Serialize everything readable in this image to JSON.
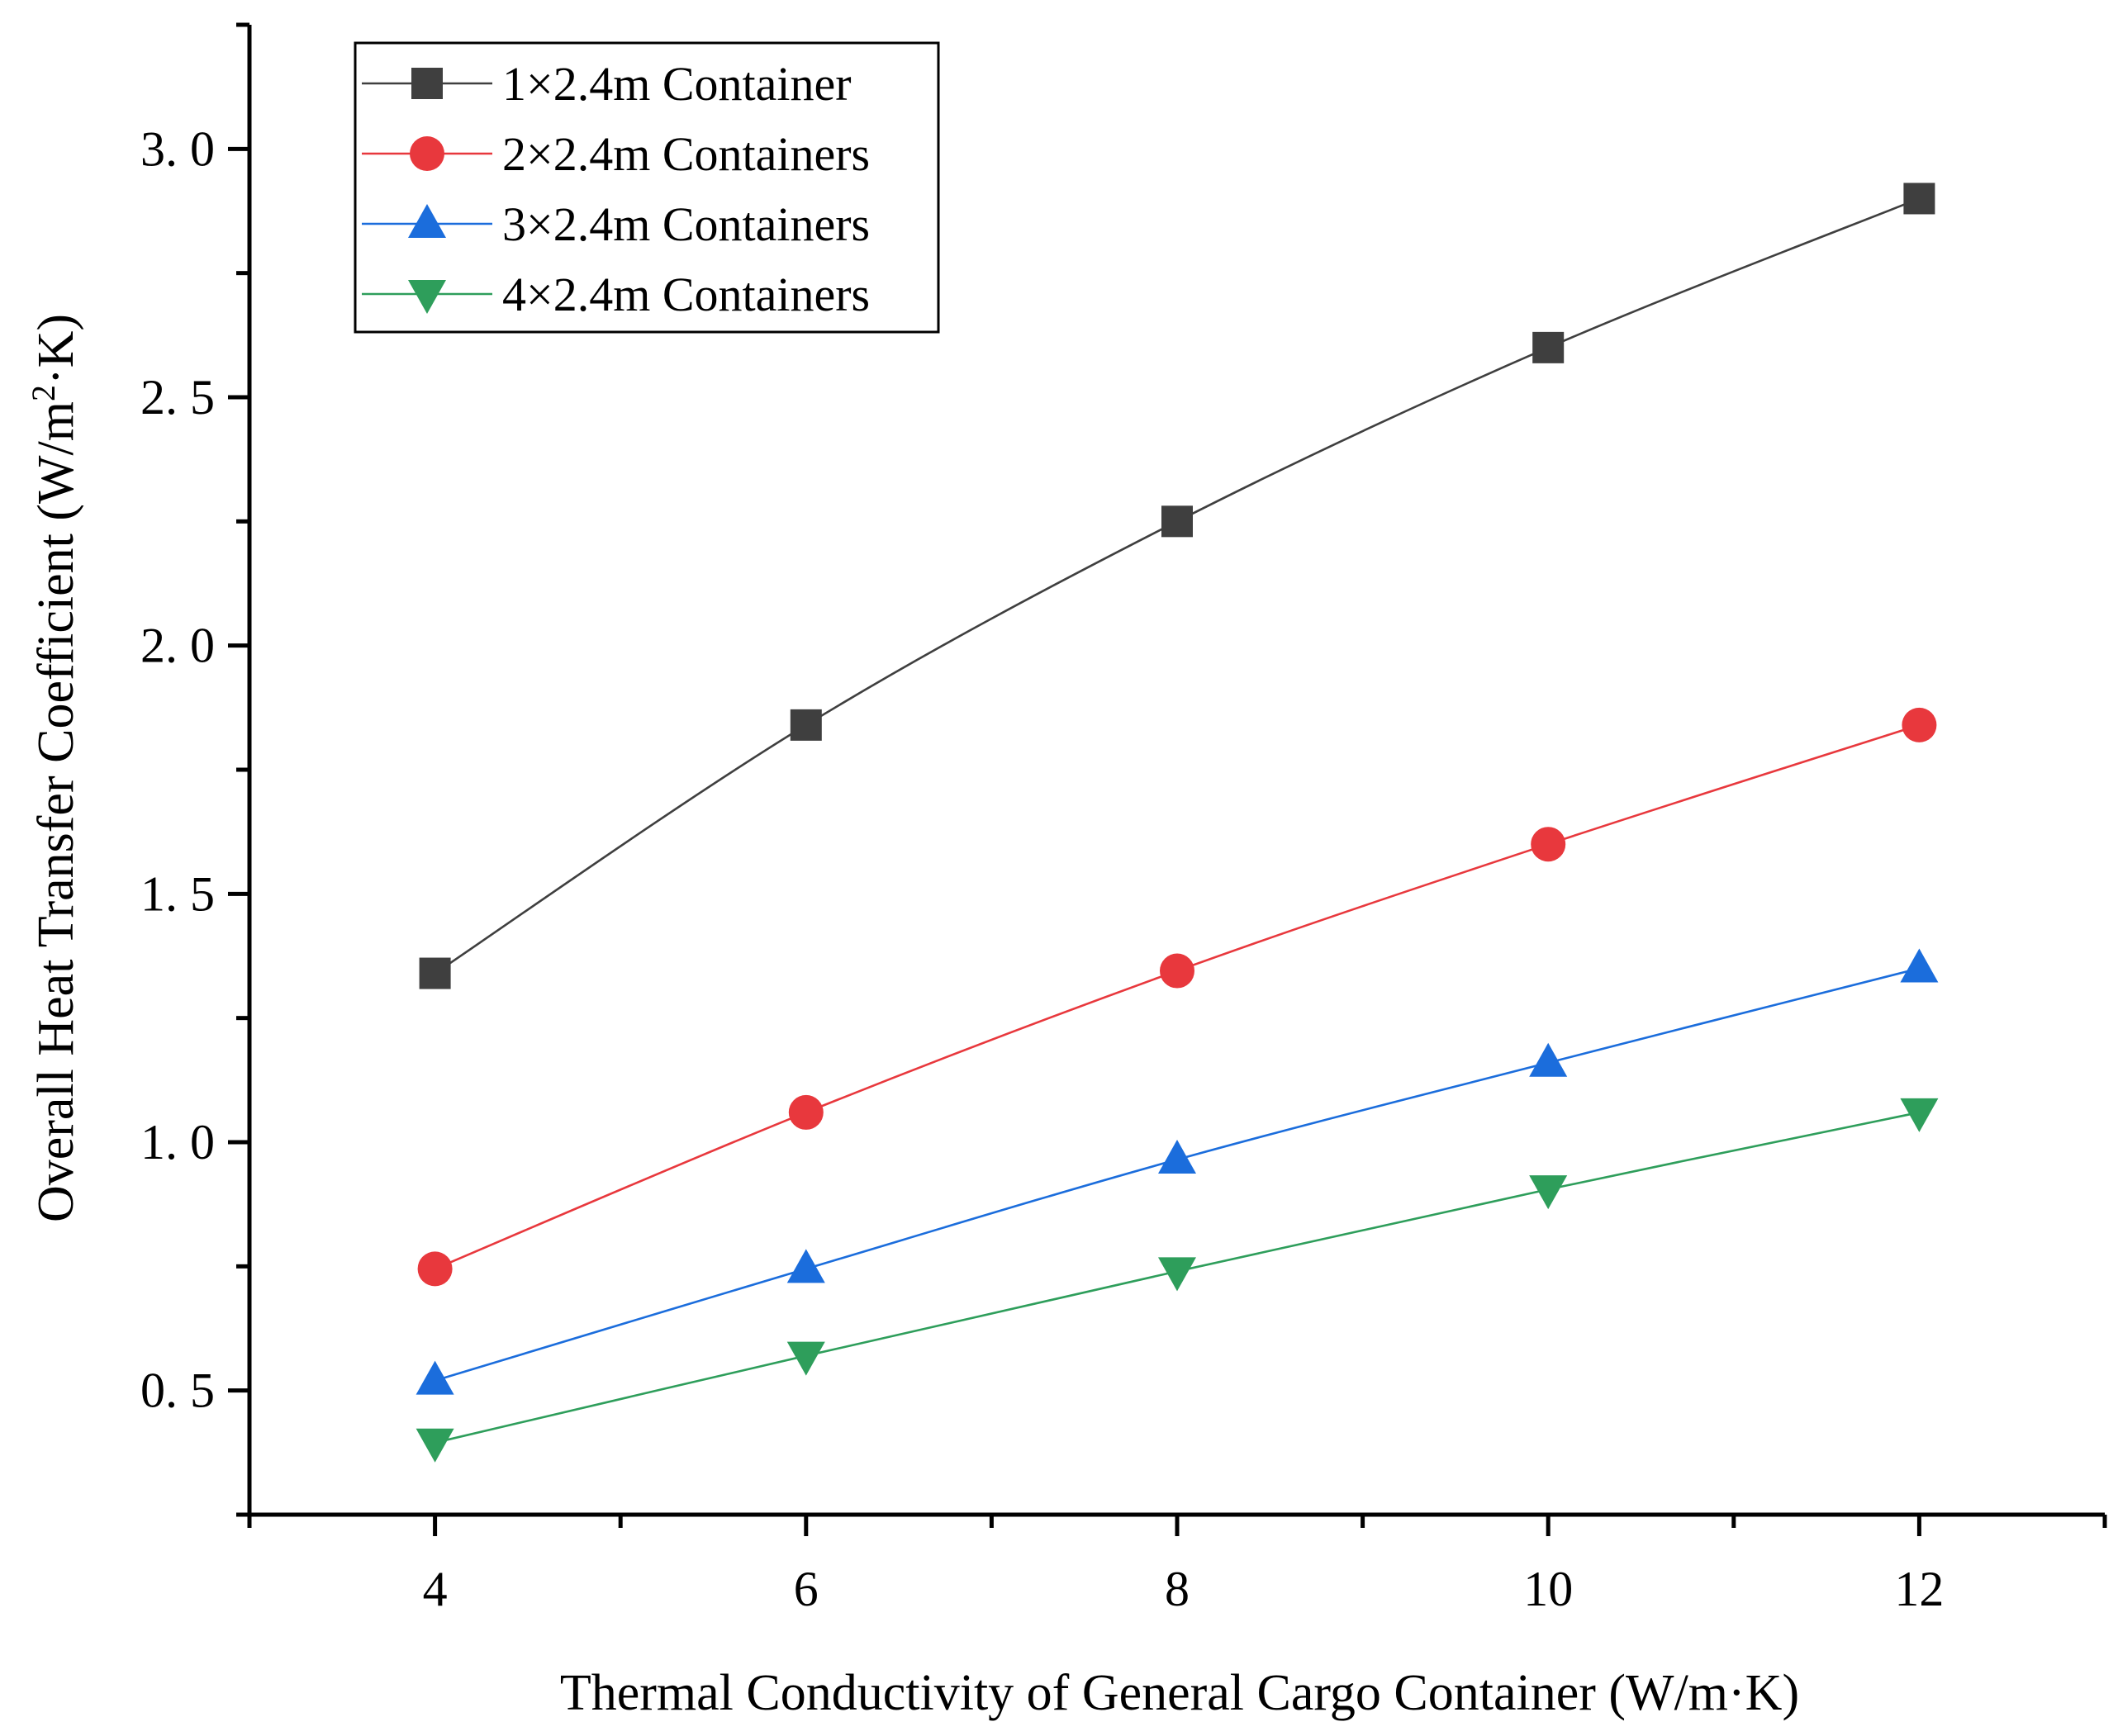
{
  "chart_data": {
    "type": "line",
    "title": "",
    "xlabel": "Thermal Conductivity of General Cargo Container (W/m·K)",
    "ylabel_main": "Overall Heat Transfer Coefficient (W/m",
    "ylabel_sup": "2",
    "ylabel_tail": "·K)",
    "x": [
      4,
      6,
      8,
      10,
      12
    ],
    "xlim": [
      3,
      13
    ],
    "ylim": [
      0.25,
      3.25
    ],
    "xticks": [
      4,
      6,
      8,
      10,
      12
    ],
    "xtick_labels": [
      "4",
      "6",
      "8",
      "10",
      "12"
    ],
    "xminor": [
      5,
      7,
      9,
      11,
      13
    ],
    "yticks": [
      0.5,
      1.0,
      1.5,
      2.0,
      2.5,
      3.0
    ],
    "ytick_labels": [
      "0. 5",
      "1. 0",
      "1. 5",
      "2. 0",
      "2. 5",
      "3. 0"
    ],
    "yminor": [
      0.25,
      0.75,
      1.25,
      1.75,
      2.25,
      2.75,
      3.25
    ],
    "legend_position": "top-left",
    "grid": false,
    "series": [
      {
        "name": "1×2.4m Container",
        "marker": "square",
        "color": "#3f3f3f",
        "values": [
          1.34,
          1.84,
          2.25,
          2.6,
          2.9
        ]
      },
      {
        "name": "2×2.4m Containers",
        "marker": "circle",
        "color": "#e8383d",
        "values": [
          0.745,
          1.06,
          1.345,
          1.6,
          1.84
        ]
      },
      {
        "name": "3×2.4m Containers",
        "marker": "triangle-up",
        "color": "#1b6ddc",
        "values": [
          0.52,
          0.745,
          0.965,
          1.16,
          1.35
        ]
      },
      {
        "name": "4×2.4m Containers",
        "marker": "triangle-down",
        "color": "#2e9e5b",
        "values": [
          0.395,
          0.57,
          0.74,
          0.905,
          1.06
        ]
      }
    ]
  }
}
